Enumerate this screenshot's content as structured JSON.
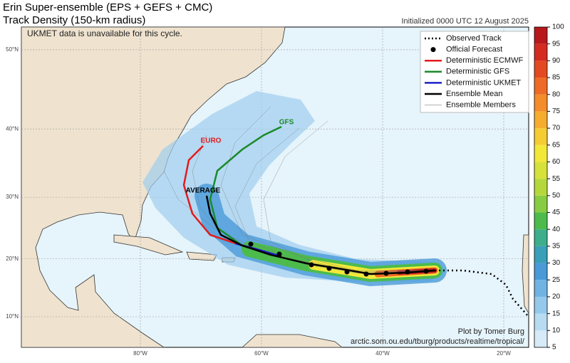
{
  "header": {
    "title": "Erin Super-ensemble (EPS + GEFS + CMC)",
    "subtitle": "Track Density (150-km radius)",
    "initialized": "Initialized 0000 UTC 12 August 2025"
  },
  "map": {
    "note": "UKMET data is unavailable for this cycle.",
    "lat_ticks": [
      {
        "value": 10,
        "label": "10°N"
      },
      {
        "value": 20,
        "label": "20°N"
      },
      {
        "value": 30,
        "label": "30°N"
      },
      {
        "value": 40,
        "label": "40°N"
      },
      {
        "value": 50,
        "label": "50°N"
      }
    ],
    "lon_ticks": [
      {
        "value": -80,
        "label": "80°W"
      },
      {
        "value": -60,
        "label": "60°W"
      },
      {
        "value": -40,
        "label": "40°W"
      },
      {
        "value": -20,
        "label": "20°W"
      }
    ],
    "annotations": [
      "EURO",
      "GFS",
      "AVERAGE"
    ],
    "credit": "Plot by Tomer Burg",
    "url": "arctic.som.ou.edu/tburg/products/realtime/tropical/"
  },
  "legend": [
    {
      "name": "Observed Track",
      "color": "#000000",
      "style": "dotted"
    },
    {
      "name": "Official Forecast",
      "color": "#000000",
      "style": "marker"
    },
    {
      "name": "Deterministic ECMWF",
      "color": "#e41a1c",
      "style": "line"
    },
    {
      "name": "Deterministic GFS",
      "color": "#1a8a2a",
      "style": "line"
    },
    {
      "name": "Deterministic UKMET",
      "color": "#2020c8",
      "style": "line"
    },
    {
      "name": "Ensemble Mean",
      "color": "#000000",
      "style": "line"
    },
    {
      "name": "Ensemble Members",
      "color": "#999999",
      "style": "thin"
    }
  ],
  "colorbar": {
    "ticks": [
      5,
      10,
      15,
      20,
      25,
      30,
      35,
      40,
      45,
      50,
      55,
      60,
      65,
      70,
      75,
      80,
      85,
      90,
      95,
      100
    ],
    "colors": [
      "#d6eaf8",
      "#b7dcf2",
      "#95c9ec",
      "#6fb3e3",
      "#4a9ad8",
      "#3a9fb8",
      "#3cae8c",
      "#4cbb4c",
      "#88cc44",
      "#b4d83c",
      "#d6e23a",
      "#f2e83a",
      "#f6cc34",
      "#f6ac2e",
      "#f48c2a",
      "#ee6a26",
      "#e44a22",
      "#d42a20",
      "#b8181c"
    ]
  }
}
